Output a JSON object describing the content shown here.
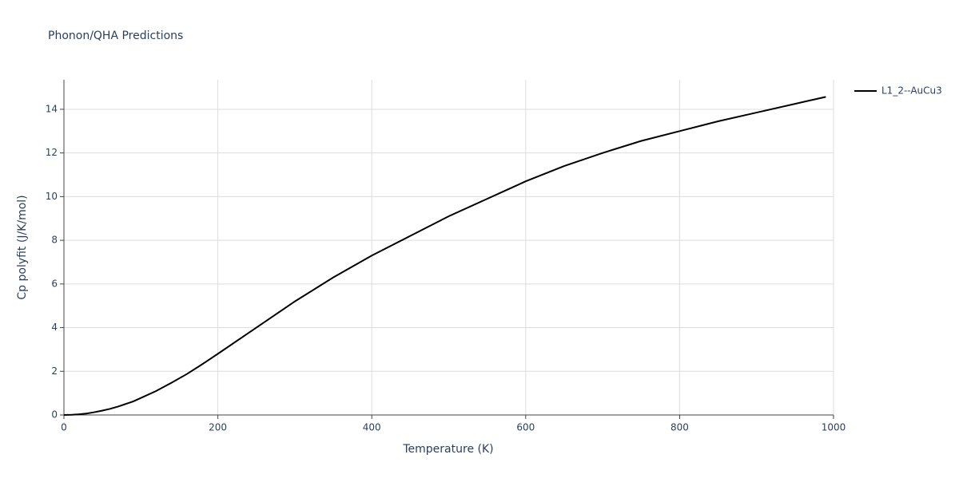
{
  "chart_data": {
    "type": "line",
    "title": "Phonon/QHA Predictions",
    "x_label": "Temperature (K)",
    "y_label": "Cp polyfit (J/K/mol)",
    "x": [
      0,
      10,
      20,
      30,
      40,
      50,
      60,
      70,
      80,
      90,
      100,
      120,
      140,
      160,
      180,
      200,
      250,
      300,
      350,
      400,
      450,
      500,
      550,
      600,
      650,
      700,
      750,
      800,
      850,
      900,
      950,
      990
    ],
    "series": [
      {
        "name": "L1_2--AuCu3",
        "color": "#000000",
        "values": [
          0,
          0.01,
          0.03,
          0.07,
          0.13,
          0.2,
          0.28,
          0.38,
          0.5,
          0.62,
          0.78,
          1.1,
          1.48,
          1.88,
          2.33,
          2.8,
          4.0,
          5.2,
          6.3,
          7.3,
          8.2,
          9.1,
          9.9,
          10.7,
          11.4,
          12.0,
          12.55,
          13.0,
          13.45,
          13.85,
          14.25,
          14.57
        ]
      }
    ],
    "xlim": [
      0,
      1000
    ],
    "xticks": [
      0,
      200,
      400,
      600,
      800,
      1000
    ],
    "ylim": [
      0,
      15.35
    ],
    "yticks": [
      0,
      2,
      4,
      6,
      8,
      10,
      12,
      14
    ],
    "grid": true,
    "legend": "top-right"
  }
}
